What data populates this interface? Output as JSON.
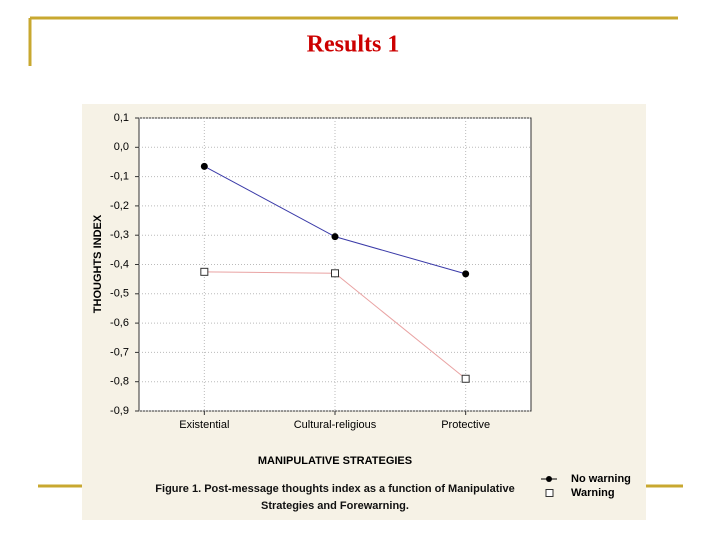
{
  "slide_title": "Results 1",
  "chart_data": {
    "type": "line",
    "caption": "Figure 1. Post-message thoughts index as a function of Manipulative Strategies and Forewarning.",
    "x_label": "MANIPULATIVE STRATEGIES",
    "y_label": "THOUGHTS INDEX",
    "categories": [
      "Existential",
      "Cultural-religious",
      "Protective"
    ],
    "series": [
      {
        "name": "No warning",
        "color": "#3a3aa8",
        "marker": "circle",
        "values": [
          -0.065,
          -0.305,
          -0.432
        ]
      },
      {
        "name": "Warning",
        "color": "#e9a3a3",
        "marker": "square",
        "values": [
          -0.425,
          -0.43,
          -0.79
        ]
      }
    ],
    "ylim": [
      -0.9,
      0.1
    ],
    "yticks": [
      {
        "value": 0.1,
        "label": "0,1"
      },
      {
        "value": 0,
        "label": "0,0"
      },
      {
        "value": -0.1,
        "label": "-0,1"
      },
      {
        "value": -0.2,
        "label": "-0,2"
      },
      {
        "value": -0.3,
        "label": "-0,3"
      },
      {
        "value": -0.4,
        "label": "-0,4"
      },
      {
        "value": -0.5,
        "label": "-0,5"
      },
      {
        "value": -0.6,
        "label": "-0,6"
      },
      {
        "value": -0.7,
        "label": "-0,7"
      },
      {
        "value": -0.8,
        "label": "-0,8"
      },
      {
        "value": -0.9,
        "label": "-0,9"
      }
    ],
    "grid": true,
    "legend": "bottom-right"
  }
}
